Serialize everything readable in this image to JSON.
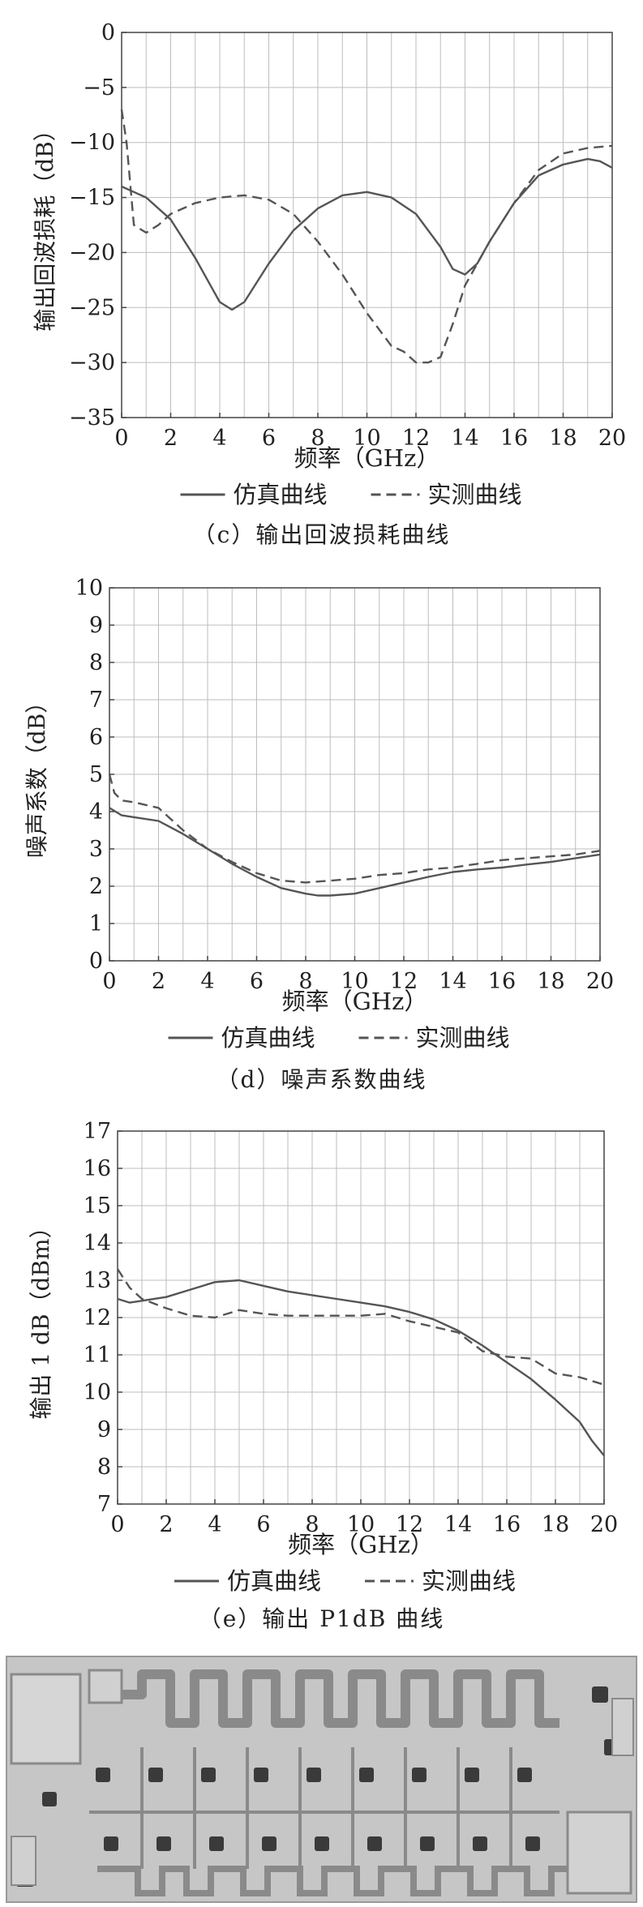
{
  "chart_data": [
    {
      "id": "c",
      "type": "line",
      "title": "",
      "xlabel": "频率（GHz）",
      "ylabel": "输出回波损耗（dB）",
      "xlim": [
        0,
        20
      ],
      "ylim": [
        -35,
        0
      ],
      "xticks": [
        0,
        2,
        4,
        6,
        8,
        10,
        12,
        14,
        16,
        18,
        20
      ],
      "yticks": [
        0,
        -5,
        -10,
        -15,
        -20,
        -25,
        -30,
        -35
      ],
      "grid": true,
      "legend_position": "bottom",
      "series": [
        {
          "name": "仿真曲线",
          "style": "solid",
          "x": [
            0,
            0.5,
            1,
            2,
            3,
            4,
            4.5,
            5,
            6,
            7,
            8,
            9,
            10,
            11,
            12,
            13,
            13.5,
            14,
            14.5,
            15,
            16,
            17,
            18,
            19,
            19.5,
            20
          ],
          "y": [
            -14,
            -14.5,
            -15,
            -17,
            -20.5,
            -24.5,
            -25.2,
            -24.5,
            -21,
            -18,
            -16,
            -14.8,
            -14.5,
            -15,
            -16.5,
            -19.5,
            -21.5,
            -22,
            -21,
            -19,
            -15.5,
            -13,
            -12,
            -11.5,
            -11.7,
            -12.3
          ]
        },
        {
          "name": "实测曲线",
          "style": "dashed",
          "x": [
            0,
            0.2,
            0.5,
            1,
            1.5,
            2,
            3,
            4,
            5,
            6,
            7,
            8,
            9,
            10,
            11,
            11.5,
            12,
            12.5,
            13,
            13.5,
            14,
            15,
            16,
            17,
            18,
            19,
            20
          ],
          "y": [
            -7,
            -10,
            -17.5,
            -18.2,
            -17.5,
            -16.5,
            -15.5,
            -15,
            -14.8,
            -15.2,
            -16.5,
            -19,
            -22,
            -25.5,
            -28.5,
            -29,
            -30,
            -30,
            -29.5,
            -26.5,
            -23,
            -19,
            -15.5,
            -12.5,
            -11,
            -10.5,
            -10.3
          ]
        }
      ],
      "caption": "（c）输出回波损耗曲线"
    },
    {
      "id": "d",
      "type": "line",
      "title": "",
      "xlabel": "频率（GHz）",
      "ylabel": "噪声系数（dB）",
      "xlim": [
        0,
        20
      ],
      "ylim": [
        0,
        10
      ],
      "xticks": [
        0,
        2,
        4,
        6,
        8,
        10,
        12,
        14,
        16,
        18,
        20
      ],
      "yticks": [
        0,
        1,
        2,
        3,
        4,
        5,
        6,
        7,
        8,
        9,
        10
      ],
      "grid": true,
      "legend_position": "bottom",
      "series": [
        {
          "name": "仿真曲线",
          "style": "solid",
          "x": [
            0,
            0.5,
            1,
            2,
            3,
            4,
            5,
            6,
            7,
            8,
            8.5,
            9,
            10,
            11,
            12,
            13,
            14,
            15,
            16,
            17,
            18,
            19,
            20
          ],
          "y": [
            4.1,
            3.9,
            3.85,
            3.75,
            3.4,
            3.0,
            2.6,
            2.25,
            1.95,
            1.8,
            1.75,
            1.75,
            1.8,
            1.95,
            2.1,
            2.25,
            2.38,
            2.45,
            2.5,
            2.58,
            2.65,
            2.75,
            2.85
          ]
        },
        {
          "name": "实测曲线",
          "style": "dashed",
          "x": [
            0,
            0.2,
            0.5,
            1,
            2,
            3,
            4,
            5,
            6,
            7,
            8,
            9,
            10,
            11,
            12,
            13,
            14,
            15,
            16,
            17,
            18,
            19,
            20
          ],
          "y": [
            5.0,
            4.5,
            4.3,
            4.25,
            4.1,
            3.5,
            3.0,
            2.65,
            2.35,
            2.15,
            2.1,
            2.15,
            2.2,
            2.3,
            2.35,
            2.45,
            2.5,
            2.6,
            2.7,
            2.75,
            2.8,
            2.85,
            2.95
          ]
        }
      ],
      "caption": "（d）噪声系数曲线"
    },
    {
      "id": "e",
      "type": "line",
      "title": "",
      "xlabel": "频率（GHz）",
      "ylabel": "输出 1 dB（dBm）",
      "xlim": [
        0,
        20
      ],
      "ylim": [
        7,
        17
      ],
      "xticks": [
        0,
        2,
        4,
        6,
        8,
        10,
        12,
        14,
        16,
        18,
        20
      ],
      "yticks": [
        7,
        8,
        9,
        10,
        11,
        12,
        13,
        14,
        15,
        16,
        17
      ],
      "grid": true,
      "legend_position": "bottom",
      "series": [
        {
          "name": "仿真曲线",
          "style": "solid",
          "x": [
            0,
            0.5,
            1,
            2,
            3,
            4,
            5,
            6,
            7,
            8,
            9,
            10,
            11,
            12,
            13,
            14,
            15,
            16,
            17,
            18,
            19,
            19.5,
            20
          ],
          "y": [
            12.5,
            12.4,
            12.45,
            12.55,
            12.75,
            12.95,
            13.0,
            12.85,
            12.7,
            12.6,
            12.5,
            12.4,
            12.3,
            12.15,
            11.95,
            11.65,
            11.25,
            10.8,
            10.35,
            9.8,
            9.2,
            8.7,
            8.3
          ]
        },
        {
          "name": "实测曲线",
          "style": "dashed",
          "x": [
            0,
            0.5,
            1,
            2,
            3,
            4,
            5,
            6,
            7,
            8,
            9,
            10,
            11,
            12,
            13,
            14,
            15,
            16,
            17,
            18,
            19,
            20
          ],
          "y": [
            13.3,
            12.8,
            12.5,
            12.25,
            12.05,
            12.0,
            12.2,
            12.1,
            12.05,
            12.05,
            12.05,
            12.05,
            12.1,
            11.9,
            11.75,
            11.6,
            11.1,
            10.95,
            10.9,
            10.5,
            10.4,
            10.2
          ]
        }
      ],
      "caption": "（e）输出 P1dB 曲线"
    }
  ],
  "colors": {
    "solid_line": "#555555",
    "dashed_line": "#555555",
    "grid": "#bdbdbd",
    "chip_background": "#c9c9c9",
    "chip_trace": "#8a8a8a",
    "chip_pad": "#3a3a3a"
  }
}
